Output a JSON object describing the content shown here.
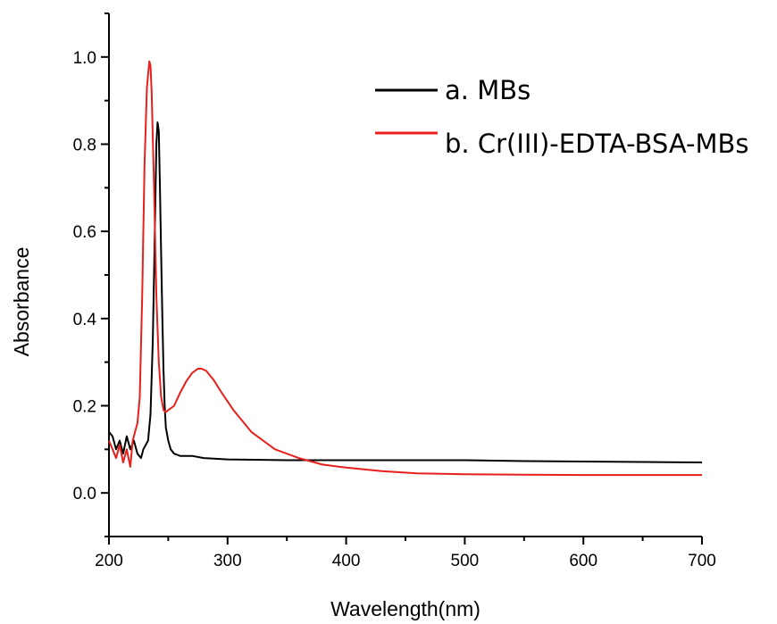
{
  "chart_data": {
    "type": "line",
    "xlabel": "Wavelength(nm)",
    "ylabel": "Absorbance",
    "xlim": [
      200,
      700
    ],
    "ylim": [
      -0.1,
      1.1
    ],
    "x_ticks": [
      "200",
      "300",
      "400",
      "500",
      "600",
      "700"
    ],
    "y_ticks": [
      "0.0",
      "0.2",
      "0.4",
      "0.6",
      "0.8",
      "1.0"
    ],
    "grid": false,
    "legend_position": "top-right",
    "series": [
      {
        "name": "a. MBs",
        "color": "#000000",
        "x": [
          200,
          203,
          206,
          209,
          212,
          215,
          218,
          221,
          224,
          227,
          229,
          231,
          233,
          235,
          237,
          239,
          240,
          241,
          242,
          243,
          244,
          245,
          246,
          247,
          248,
          250,
          252,
          255,
          260,
          270,
          280,
          300,
          350,
          400,
          450,
          500,
          550,
          600,
          650,
          700
        ],
        "y": [
          0.14,
          0.13,
          0.1,
          0.12,
          0.09,
          0.13,
          0.1,
          0.12,
          0.09,
          0.08,
          0.1,
          0.11,
          0.12,
          0.18,
          0.35,
          0.65,
          0.8,
          0.85,
          0.83,
          0.7,
          0.55,
          0.4,
          0.28,
          0.2,
          0.15,
          0.12,
          0.1,
          0.09,
          0.085,
          0.085,
          0.08,
          0.077,
          0.075,
          0.075,
          0.075,
          0.075,
          0.073,
          0.072,
          0.071,
          0.07
        ]
      },
      {
        "name": "b. Cr(III)-EDTA-BSA-MBs",
        "color": "#e8201c",
        "x": [
          200,
          203,
          206,
          209,
          212,
          215,
          218,
          220,
          222,
          224,
          226,
          228,
          230,
          232,
          234,
          235,
          236,
          238,
          240,
          242,
          244,
          246,
          248,
          250,
          255,
          260,
          265,
          270,
          275,
          278,
          282,
          288,
          295,
          305,
          320,
          340,
          360,
          380,
          400,
          430,
          460,
          500,
          550,
          600,
          650,
          700
        ],
        "y": [
          0.12,
          0.1,
          0.08,
          0.11,
          0.07,
          0.1,
          0.06,
          0.12,
          0.14,
          0.16,
          0.22,
          0.45,
          0.75,
          0.93,
          0.99,
          0.98,
          0.92,
          0.7,
          0.45,
          0.3,
          0.22,
          0.19,
          0.185,
          0.19,
          0.2,
          0.23,
          0.255,
          0.275,
          0.285,
          0.285,
          0.28,
          0.26,
          0.23,
          0.19,
          0.14,
          0.1,
          0.08,
          0.065,
          0.058,
          0.05,
          0.045,
          0.043,
          0.042,
          0.041,
          0.041,
          0.041
        ]
      }
    ]
  }
}
